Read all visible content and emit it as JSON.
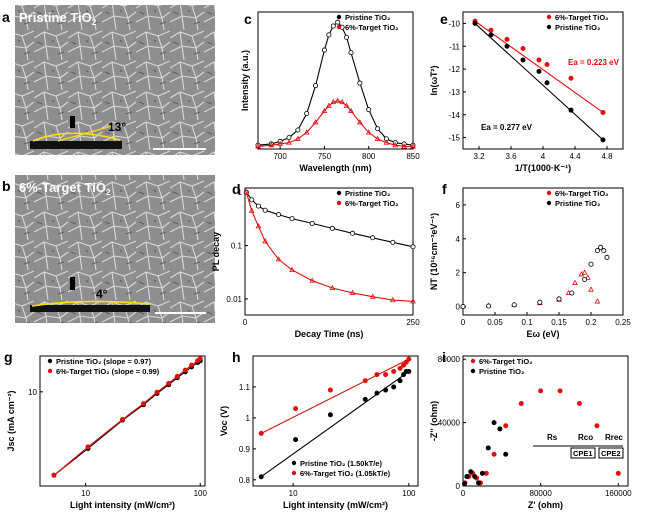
{
  "figure": {
    "panels": {
      "a": {
        "letter": "a",
        "label": "Pristine TiO",
        "sub": "2",
        "angle": "13°"
      },
      "b": {
        "letter": "b",
        "label": "6%-Target TiO",
        "sub": "2",
        "angle": "4°"
      }
    },
    "colors": {
      "black": "#000000",
      "red": "#e01010",
      "sem_bg": "#8c8c8c"
    }
  },
  "chart_data": [
    {
      "id": "c",
      "letter": "c",
      "type": "line",
      "xlabel": "Wavelength (nm)",
      "ylabel": "Intensity (a.u.)",
      "xlim": [
        675,
        850
      ],
      "xticks": [
        700,
        750,
        800,
        850
      ],
      "yticks": [],
      "legend": "top-right",
      "series": [
        {
          "name": "Pristine TiO₂",
          "color": "#000000",
          "marker": "circle-open",
          "x": [
            675,
            690,
            700,
            710,
            720,
            730,
            740,
            750,
            755,
            760,
            765,
            770,
            775,
            780,
            790,
            800,
            810,
            820,
            830,
            840,
            850
          ],
          "y": [
            0.03,
            0.04,
            0.06,
            0.09,
            0.15,
            0.28,
            0.5,
            0.78,
            0.9,
            0.97,
            1.0,
            0.96,
            0.88,
            0.76,
            0.52,
            0.31,
            0.16,
            0.08,
            0.05,
            0.04,
            0.03
          ]
        },
        {
          "name": "6%-Target TiO₂",
          "color": "#e01010",
          "marker": "triangle-open",
          "x": [
            675,
            690,
            700,
            710,
            720,
            730,
            740,
            750,
            755,
            760,
            765,
            770,
            775,
            780,
            790,
            800,
            810,
            820,
            830,
            840,
            850
          ],
          "y": [
            0.02,
            0.03,
            0.04,
            0.05,
            0.08,
            0.13,
            0.21,
            0.3,
            0.34,
            0.37,
            0.38,
            0.37,
            0.34,
            0.3,
            0.21,
            0.13,
            0.08,
            0.05,
            0.03,
            0.02,
            0.02
          ]
        }
      ]
    },
    {
      "id": "e",
      "letter": "e",
      "type": "scatter",
      "xlabel": "1/T(1000·K⁻¹)",
      "ylabel": "ln(ωT²)",
      "xlim": [
        3.0,
        5.0
      ],
      "ylim": [
        -15.5,
        -9.5
      ],
      "xticks": [
        3.2,
        3.6,
        4.0,
        4.4,
        4.8
      ],
      "yticks": [
        -10,
        -11,
        -12,
        -13,
        -14,
        -15
      ],
      "legend": "top-right",
      "annotations": [
        {
          "text": "Ea = 0.223 eV",
          "color": "#e01010"
        },
        {
          "text": "Ea = 0.277 eV",
          "color": "#000000"
        }
      ],
      "series": [
        {
          "name": "6%-Target TiO₂",
          "color": "#e01010",
          "marker": "circle",
          "x": [
            3.15,
            3.35,
            3.55,
            3.75,
            3.95,
            4.05,
            4.35,
            4.75
          ],
          "y": [
            -9.9,
            -10.3,
            -10.7,
            -11.1,
            -11.6,
            -11.8,
            -12.4,
            -13.9
          ]
        },
        {
          "name": "Pristine TiO₂",
          "color": "#000000",
          "marker": "circle",
          "x": [
            3.15,
            3.35,
            3.55,
            3.75,
            3.95,
            4.05,
            4.35,
            4.75
          ],
          "y": [
            -10.0,
            -10.5,
            -11.0,
            -11.6,
            -12.1,
            -12.6,
            -13.8,
            -15.1
          ]
        }
      ]
    },
    {
      "id": "d",
      "letter": "d",
      "type": "line",
      "xlabel": "Decay Time (ns)",
      "ylabel": "PL decay",
      "xlim": [
        0,
        250
      ],
      "ylim_log": [
        0.005,
        1.2
      ],
      "xticks": [
        0,
        250
      ],
      "yticks": [
        1,
        0.1,
        0.01
      ],
      "legend": "top-right",
      "series": [
        {
          "name": "Pristine TiO₂",
          "color": "#000000",
          "marker": "circle-open",
          "x": [
            2,
            10,
            20,
            30,
            50,
            70,
            100,
            130,
            160,
            190,
            220,
            250
          ],
          "y": [
            1.0,
            0.72,
            0.55,
            0.46,
            0.38,
            0.32,
            0.26,
            0.21,
            0.17,
            0.14,
            0.115,
            0.095
          ]
        },
        {
          "name": "6%-Target TiO₂",
          "color": "#e01010",
          "marker": "triangle-open",
          "x": [
            2,
            10,
            20,
            30,
            50,
            70,
            100,
            130,
            160,
            190,
            220,
            250
          ],
          "y": [
            1.0,
            0.45,
            0.23,
            0.12,
            0.055,
            0.035,
            0.022,
            0.016,
            0.013,
            0.011,
            0.0095,
            0.009
          ]
        }
      ]
    },
    {
      "id": "f",
      "letter": "f",
      "type": "scatter",
      "xlabel": "Eω (eV)",
      "ylabel": "NT (10¹⁶cm⁻³eV⁻¹)",
      "xlim": [
        0.0,
        0.25
      ],
      "ylim": [
        -0.5,
        7
      ],
      "xticks": [
        0.0,
        0.05,
        0.1,
        0.15,
        0.2,
        0.25
      ],
      "yticks": [
        0,
        2,
        4,
        6
      ],
      "legend": "top-right",
      "series": [
        {
          "name": "6%-Target TiO₂",
          "color": "#e01010",
          "marker": "triangle-open",
          "x": [
            0.0,
            0.04,
            0.08,
            0.12,
            0.15,
            0.165,
            0.175,
            0.185,
            0.19,
            0.195,
            0.2,
            0.21
          ],
          "y": [
            0.0,
            0.05,
            0.1,
            0.2,
            0.4,
            0.8,
            1.4,
            1.9,
            2.0,
            1.7,
            1.0,
            0.3
          ]
        },
        {
          "name": "Pristine TiO₂",
          "color": "#000000",
          "marker": "circle-open",
          "x": [
            0.0,
            0.04,
            0.08,
            0.12,
            0.15,
            0.17,
            0.19,
            0.2,
            0.21,
            0.215,
            0.22,
            0.225
          ],
          "y": [
            0.0,
            0.03,
            0.1,
            0.25,
            0.45,
            0.8,
            1.6,
            2.5,
            3.3,
            3.5,
            3.3,
            2.9
          ]
        }
      ]
    },
    {
      "id": "g",
      "letter": "g",
      "type": "scatter",
      "xlabel": "Light intensity (mW/cm²)",
      "ylabel": "Jsc (mA cm⁻²)",
      "xlim_log": [
        4,
        110
      ],
      "ylim_log": [
        1,
        24
      ],
      "xticks": [
        10,
        100
      ],
      "yticks": [
        10
      ],
      "legend": "top-left",
      "series": [
        {
          "name": "Pristine TiO₂ (slope = 0.97)",
          "color": "#000000",
          "marker": "circle",
          "x": [
            5.3,
            10.5,
            21,
            32,
            42,
            53,
            63,
            74,
            84,
            95,
            100
          ],
          "y": [
            1.3,
            2.5,
            5.0,
            7.3,
            9.6,
            11.9,
            14.1,
            16.3,
            18.4,
            20.5,
            21.4
          ]
        },
        {
          "name": "6%-Target TiO₂ (slope = 0.99)",
          "color": "#e01010",
          "marker": "circle",
          "x": [
            5.3,
            10.5,
            21,
            32,
            42,
            53,
            63,
            74,
            84,
            95,
            100
          ],
          "y": [
            1.3,
            2.6,
            5.1,
            7.5,
            9.9,
            12.3,
            14.6,
            17.0,
            19.2,
            21.4,
            22.5
          ]
        }
      ]
    },
    {
      "id": "h",
      "letter": "h",
      "type": "scatter",
      "xlabel": "Light intensity (mW/cm²)",
      "ylabel": "Voc (V)",
      "xlim_log": [
        4.5,
        120
      ],
      "ylim": [
        0.78,
        1.2
      ],
      "xticks": [
        10,
        100
      ],
      "yticks": [
        0.8,
        0.9,
        1.0,
        1.1
      ],
      "legend": "bottom-right",
      "series": [
        {
          "name": "Pristine TiO₂ (1.50kT/e)",
          "color": "#000000",
          "marker": "circle",
          "x": [
            5.3,
            10.5,
            21,
            42,
            53,
            63,
            74,
            84,
            90,
            95,
            100
          ],
          "y": [
            0.81,
            0.93,
            1.01,
            1.06,
            1.08,
            1.09,
            1.1,
            1.12,
            1.14,
            1.15,
            1.15
          ]
        },
        {
          "name": "6%-Target TiO₂ (1.05kT/e)",
          "color": "#e01010",
          "marker": "circle",
          "x": [
            5.3,
            10.5,
            21,
            42,
            53,
            63,
            74,
            84,
            90,
            95,
            100
          ],
          "y": [
            0.95,
            1.03,
            1.09,
            1.12,
            1.14,
            1.14,
            1.15,
            1.16,
            1.17,
            1.18,
            1.19
          ]
        }
      ]
    },
    {
      "id": "i",
      "letter": "i",
      "type": "scatter",
      "xlabel": "Z' (ohm)",
      "ylabel": "-Z'' (ohm)",
      "xlim": [
        0,
        170000
      ],
      "ylim": [
        0,
        82000
      ],
      "xticks": [
        0,
        80000,
        160000
      ],
      "yticks": [
        0,
        40000,
        80000
      ],
      "legend": "top-left",
      "circuit": [
        "Rs",
        "Rco",
        "Rrec",
        "CPE1",
        "CPE2"
      ],
      "series": [
        {
          "name": "6%-Target TiO₂",
          "color": "#e01010",
          "marker": "circle",
          "x": [
            2000,
            6000,
            10000,
            14000,
            18000,
            24000,
            32000,
            44000,
            60000,
            80000,
            100000,
            120000,
            138000,
            152000,
            160000
          ],
          "y": [
            2000,
            6000,
            8000,
            5000,
            2000,
            8000,
            20000,
            38000,
            52000,
            60000,
            60000,
            52000,
            38000,
            22000,
            8000
          ]
        },
        {
          "name": "Pristine TiO₂",
          "color": "#000000",
          "marker": "circle",
          "x": [
            1500,
            4000,
            8000,
            12000,
            16000,
            20000,
            26000,
            32000,
            38000,
            44000
          ],
          "y": [
            1500,
            6000,
            9000,
            6000,
            2000,
            8000,
            24000,
            40000,
            36000,
            20000
          ]
        }
      ]
    }
  ]
}
